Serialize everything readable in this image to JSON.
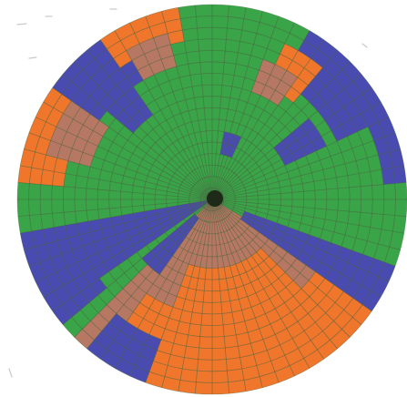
{
  "disc": {
    "rings": 17,
    "sectors": 72,
    "grid_color": "#4a5e3f",
    "hub_color": "#1d2a18"
  },
  "palette": {
    "green": "#3aa448",
    "blue": "#4a4bb0",
    "orange": "#f0762c",
    "brown": "#b77863"
  },
  "regions": [
    {
      "name": "blue-west-wedge",
      "color": "blue",
      "sectors": [
        47,
        51
      ],
      "rings": [
        1,
        17
      ]
    },
    {
      "name": "blue-west-wedge-tip",
      "color": "blue",
      "sectors": [
        46,
        47
      ],
      "rings": [
        13,
        17
      ]
    },
    {
      "name": "blue-north-west-band",
      "color": "blue",
      "sectors": [
        60,
        65
      ],
      "rings": [
        13,
        17
      ]
    },
    {
      "name": "blue-north-west-notch",
      "color": "blue",
      "sectors": [
        62,
        64
      ],
      "rings": [
        10,
        13
      ]
    },
    {
      "name": "orange-north-west",
      "color": "orange",
      "sectors": [
        55,
        60
      ],
      "rings": [
        14,
        17
      ]
    },
    {
      "name": "brown-north-west",
      "color": "brown",
      "sectors": [
        57,
        60
      ],
      "rings": [
        12,
        15
      ]
    },
    {
      "name": "orange-north",
      "color": "orange",
      "sectors": [
        65,
        69
      ],
      "rings": [
        15,
        17
      ]
    },
    {
      "name": "brown-north",
      "color": "brown",
      "sectors": [
        66,
        68
      ],
      "rings": [
        13,
        15
      ]
    },
    {
      "name": "blue-north-east-band",
      "color": "blue",
      "sectors": [
        6,
        12
      ],
      "rings": [
        13,
        17
      ]
    },
    {
      "name": "blue-north-east-patch",
      "color": "blue",
      "sectors": [
        10,
        12
      ],
      "rings": [
        8,
        11
      ]
    },
    {
      "name": "blue-north-east-edge",
      "color": "blue",
      "sectors": [
        12,
        16
      ],
      "rings": [
        16,
        17
      ]
    },
    {
      "name": "orange-north-east",
      "color": "orange",
      "sectors": [
        5,
        7
      ],
      "rings": [
        12,
        15
      ]
    },
    {
      "name": "brown-north-east",
      "color": "brown",
      "sectors": [
        4,
        6
      ],
      "rings": [
        11,
        13
      ]
    },
    {
      "name": "blue-center-north-block",
      "color": "blue",
      "sectors": [
        2,
        4
      ],
      "rings": [
        5,
        6
      ]
    },
    {
      "name": "brown-south-fan",
      "color": "brown",
      "sectors": [
        24,
        44
      ],
      "rings": [
        1,
        17
      ]
    },
    {
      "name": "orange-south-core",
      "color": "orange",
      "sectors": [
        27,
        39
      ],
      "rings": [
        7,
        17
      ]
    },
    {
      "name": "orange-south-outer",
      "color": "orange",
      "sectors": [
        25,
        28
      ],
      "rings": [
        12,
        17
      ]
    },
    {
      "name": "blue-south-east-strip",
      "color": "blue",
      "sectors": [
        22,
        24
      ],
      "rings": [
        4,
        17
      ]
    },
    {
      "name": "blue-south-west-strip",
      "color": "blue",
      "sectors": [
        43,
        45
      ],
      "rings": [
        3,
        8
      ]
    },
    {
      "name": "blue-south-west-edge",
      "color": "blue",
      "sectors": [
        40,
        43
      ],
      "rings": [
        14,
        17
      ]
    },
    {
      "name": "orange-south-west-patch",
      "color": "orange",
      "sectors": [
        40,
        42
      ],
      "rings": [
        11,
        13
      ]
    }
  ]
}
